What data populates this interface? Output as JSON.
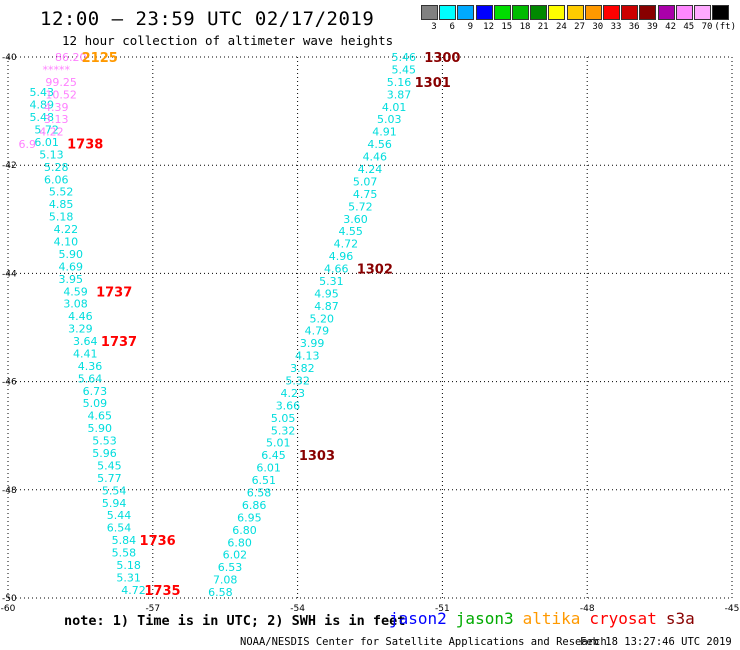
{
  "header": {
    "title": "12:00 – 23:59 UTC 02/17/2019",
    "subtitle": "12 hour collection of altimeter wave heights"
  },
  "color_scale": {
    "labels": [
      "3",
      "6",
      "9",
      "12",
      "15",
      "18",
      "21",
      "24",
      "27",
      "30",
      "33",
      "36",
      "39",
      "42",
      "45",
      "70",
      "(ft)"
    ],
    "colors": [
      "#808080",
      "#00ffff",
      "#00aaff",
      "#0000ff",
      "#00dd00",
      "#00bb00",
      "#008800",
      "#ffff00",
      "#ffcc00",
      "#ff9900",
      "#ff0000",
      "#cc0000",
      "#880000",
      "#aa00aa",
      "#ff88ff",
      "#ffaaff",
      "#000000"
    ]
  },
  "footer": {
    "note": "note: 1) Time is in UTC; 2) SWH is in feet",
    "credit": "NOAA/NESDIS Center for Satellite Applications and Research",
    "stamp": "Feb 18 13:27:46 UTC 2019"
  },
  "legend": [
    {
      "name": "jason2",
      "color": "#0000ff"
    },
    {
      "name": "jason3",
      "color": "#00aa00"
    },
    {
      "name": "altika",
      "color": "#ff9900"
    },
    {
      "name": "cryosat",
      "color": "#ff0000"
    },
    {
      "name": "s3a",
      "color": "#880000"
    }
  ],
  "chart_data": {
    "type": "scatter",
    "xlim": [
      -60,
      -45
    ],
    "ylim": [
      -50,
      -40
    ],
    "x_ticks": [
      -60,
      -57,
      -54,
      -51,
      -48,
      -45
    ],
    "x_tick_labels": [
      "-60",
      "-57",
      "-54",
      "-51",
      "-48",
      "-45"
    ],
    "y_ticks": [
      -40,
      -42,
      -44,
      -46,
      -48,
      -50
    ],
    "y_tick_labels": [
      "-40",
      "-42",
      "-44",
      "-46",
      "-48",
      "-50"
    ],
    "grid": true,
    "series": [
      {
        "color": "#00dddd",
        "points": [
          {
            "x": -59.3,
            "y": -40.65,
            "label": "5.43"
          },
          {
            "x": -59.3,
            "y": -40.88,
            "label": "4.89"
          },
          {
            "x": -59.3,
            "y": -41.11,
            "label": "5.48"
          },
          {
            "x": -59.2,
            "y": -41.34,
            "label": "5.72"
          },
          {
            "x": -59.2,
            "y": -41.57,
            "label": "6.01"
          },
          {
            "x": -59.1,
            "y": -41.8,
            "label": "5.13"
          },
          {
            "x": -59.0,
            "y": -42.03,
            "label": "5.28"
          },
          {
            "x": -59.0,
            "y": -42.26,
            "label": "6.06"
          },
          {
            "x": -58.9,
            "y": -42.49,
            "label": "5.52"
          },
          {
            "x": -58.9,
            "y": -42.72,
            "label": "4.85"
          },
          {
            "x": -58.9,
            "y": -42.95,
            "label": "5.18"
          },
          {
            "x": -58.8,
            "y": -43.18,
            "label": "4.22"
          },
          {
            "x": -58.8,
            "y": -43.41,
            "label": "4.10"
          },
          {
            "x": -58.7,
            "y": -43.64,
            "label": "5.90"
          },
          {
            "x": -58.7,
            "y": -43.87,
            "label": "4.69"
          },
          {
            "x": -58.7,
            "y": -44.1,
            "label": "3.95"
          },
          {
            "x": -58.6,
            "y": -44.33,
            "label": "4.59"
          },
          {
            "x": -58.6,
            "y": -44.56,
            "label": "3.08"
          },
          {
            "x": -58.5,
            "y": -44.79,
            "label": "4.46"
          },
          {
            "x": -58.5,
            "y": -45.02,
            "label": "3.29"
          },
          {
            "x": -58.4,
            "y": -45.25,
            "label": "3.64"
          },
          {
            "x": -58.4,
            "y": -45.48,
            "label": "4.41"
          },
          {
            "x": -58.3,
            "y": -45.71,
            "label": "4.36"
          },
          {
            "x": -58.3,
            "y": -45.94,
            "label": "5.64"
          },
          {
            "x": -58.2,
            "y": -46.17,
            "label": "6.73"
          },
          {
            "x": -58.2,
            "y": -46.4,
            "label": "5.09"
          },
          {
            "x": -58.1,
            "y": -46.63,
            "label": "4.65"
          },
          {
            "x": -58.1,
            "y": -46.86,
            "label": "5.90"
          },
          {
            "x": -58.0,
            "y": -47.09,
            "label": "5.53"
          },
          {
            "x": -58.0,
            "y": -47.32,
            "label": "5.96"
          },
          {
            "x": -57.9,
            "y": -47.55,
            "label": "5.45"
          },
          {
            "x": -57.9,
            "y": -47.78,
            "label": "5.77"
          },
          {
            "x": -57.8,
            "y": -48.01,
            "label": "5.54"
          },
          {
            "x": -57.8,
            "y": -48.24,
            "label": "5.94"
          },
          {
            "x": -57.7,
            "y": -48.47,
            "label": "5.44"
          },
          {
            "x": -57.7,
            "y": -48.7,
            "label": "6.54"
          },
          {
            "x": -57.6,
            "y": -48.93,
            "label": "5.84"
          },
          {
            "x": -57.6,
            "y": -49.16,
            "label": "5.58"
          },
          {
            "x": -57.5,
            "y": -49.39,
            "label": "5.18"
          },
          {
            "x": -57.5,
            "y": -49.62,
            "label": "5.31"
          },
          {
            "x": -57.4,
            "y": -49.85,
            "label": "4.72"
          }
        ]
      },
      {
        "color": "#ff80ff",
        "points": [
          {
            "x": -58.7,
            "y": -40.0,
            "label": "86.20"
          },
          {
            "x": -59.0,
            "y": -40.23,
            "label": "*****"
          },
          {
            "x": -58.9,
            "y": -40.46,
            "label": "99.25"
          },
          {
            "x": -58.9,
            "y": -40.69,
            "label": "10.52"
          },
          {
            "x": -59.0,
            "y": -40.92,
            "label": "4.39"
          },
          {
            "x": -59.0,
            "y": -41.15,
            "label": "3.13"
          },
          {
            "x": -59.1,
            "y": -41.38,
            "label": "4.22"
          },
          {
            "x": -59.6,
            "y": -41.61,
            "label": "6.9"
          }
        ]
      },
      {
        "color": "#00dddd",
        "points": [
          {
            "x": -51.8,
            "y": -40.0,
            "label": "5.46"
          },
          {
            "x": -51.8,
            "y": -40.23,
            "label": "5.45"
          },
          {
            "x": -51.9,
            "y": -40.46,
            "label": "5.16"
          },
          {
            "x": -51.9,
            "y": -40.69,
            "label": "3.87"
          },
          {
            "x": -52.0,
            "y": -40.92,
            "label": "4.01"
          },
          {
            "x": -52.1,
            "y": -41.15,
            "label": "5.03"
          },
          {
            "x": -52.2,
            "y": -41.38,
            "label": "4.91"
          },
          {
            "x": -52.3,
            "y": -41.61,
            "label": "4.56"
          },
          {
            "x": -52.4,
            "y": -41.84,
            "label": "4.46"
          },
          {
            "x": -52.5,
            "y": -42.07,
            "label": "4.24"
          },
          {
            "x": -52.6,
            "y": -42.3,
            "label": "5.07"
          },
          {
            "x": -52.6,
            "y": -42.53,
            "label": "4.75"
          },
          {
            "x": -52.7,
            "y": -42.76,
            "label": "5.72"
          },
          {
            "x": -52.8,
            "y": -42.99,
            "label": "3.60"
          },
          {
            "x": -52.9,
            "y": -43.22,
            "label": "4.55"
          },
          {
            "x": -53.0,
            "y": -43.45,
            "label": "4.72"
          },
          {
            "x": -53.1,
            "y": -43.68,
            "label": "4.96"
          },
          {
            "x": -53.2,
            "y": -43.91,
            "label": "4.66"
          },
          {
            "x": -53.3,
            "y": -44.14,
            "label": "5.31"
          },
          {
            "x": -53.4,
            "y": -44.37,
            "label": "4.95"
          },
          {
            "x": -53.4,
            "y": -44.6,
            "label": "4.87"
          },
          {
            "x": -53.5,
            "y": -44.83,
            "label": "5.20"
          },
          {
            "x": -53.6,
            "y": -45.06,
            "label": "4.79"
          },
          {
            "x": -53.7,
            "y": -45.29,
            "label": "3.99"
          },
          {
            "x": -53.8,
            "y": -45.52,
            "label": "4.13"
          },
          {
            "x": -53.9,
            "y": -45.75,
            "label": "3.82"
          },
          {
            "x": -54.0,
            "y": -45.98,
            "label": "5.32"
          },
          {
            "x": -54.1,
            "y": -46.21,
            "label": "4.23"
          },
          {
            "x": -54.2,
            "y": -46.44,
            "label": "3.66"
          },
          {
            "x": -54.3,
            "y": -46.67,
            "label": "5.05"
          },
          {
            "x": -54.3,
            "y": -46.9,
            "label": "5.32"
          },
          {
            "x": -54.4,
            "y": -47.13,
            "label": "5.01"
          },
          {
            "x": -54.5,
            "y": -47.36,
            "label": "6.45"
          },
          {
            "x": -54.6,
            "y": -47.59,
            "label": "6.01"
          },
          {
            "x": -54.7,
            "y": -47.82,
            "label": "6.51"
          },
          {
            "x": -54.8,
            "y": -48.05,
            "label": "6.58"
          },
          {
            "x": -54.9,
            "y": -48.28,
            "label": "6.86"
          },
          {
            "x": -55.0,
            "y": -48.51,
            "label": "6.95"
          },
          {
            "x": -55.1,
            "y": -48.74,
            "label": "6.80"
          },
          {
            "x": -55.2,
            "y": -48.97,
            "label": "6.80"
          },
          {
            "x": -55.3,
            "y": -49.2,
            "label": "6.02"
          },
          {
            "x": -55.4,
            "y": -49.43,
            "label": "6.53"
          },
          {
            "x": -55.5,
            "y": -49.66,
            "label": "7.08"
          },
          {
            "x": -55.6,
            "y": -49.89,
            "label": "6.58"
          }
        ]
      }
    ],
    "time_labels": [
      {
        "x": -58.1,
        "y": -40.0,
        "label": "2125",
        "color": "#ff9900"
      },
      {
        "x": -58.4,
        "y": -41.6,
        "label": "1738",
        "color": "#ff0000"
      },
      {
        "x": -57.8,
        "y": -44.33,
        "label": "1737",
        "color": "#ff0000"
      },
      {
        "x": -57.7,
        "y": -45.25,
        "label": "1737",
        "color": "#ff0000"
      },
      {
        "x": -56.9,
        "y": -48.93,
        "label": "1736",
        "color": "#ff0000"
      },
      {
        "x": -56.8,
        "y": -49.85,
        "label": "1735",
        "color": "#ff0000"
      },
      {
        "x": -51.0,
        "y": -40.0,
        "label": "1300",
        "color": "#880000"
      },
      {
        "x": -51.2,
        "y": -40.46,
        "label": "1301",
        "color": "#880000"
      },
      {
        "x": -52.4,
        "y": -43.91,
        "label": "1302",
        "color": "#880000"
      },
      {
        "x": -53.6,
        "y": -47.36,
        "label": "1303",
        "color": "#880000"
      }
    ]
  }
}
